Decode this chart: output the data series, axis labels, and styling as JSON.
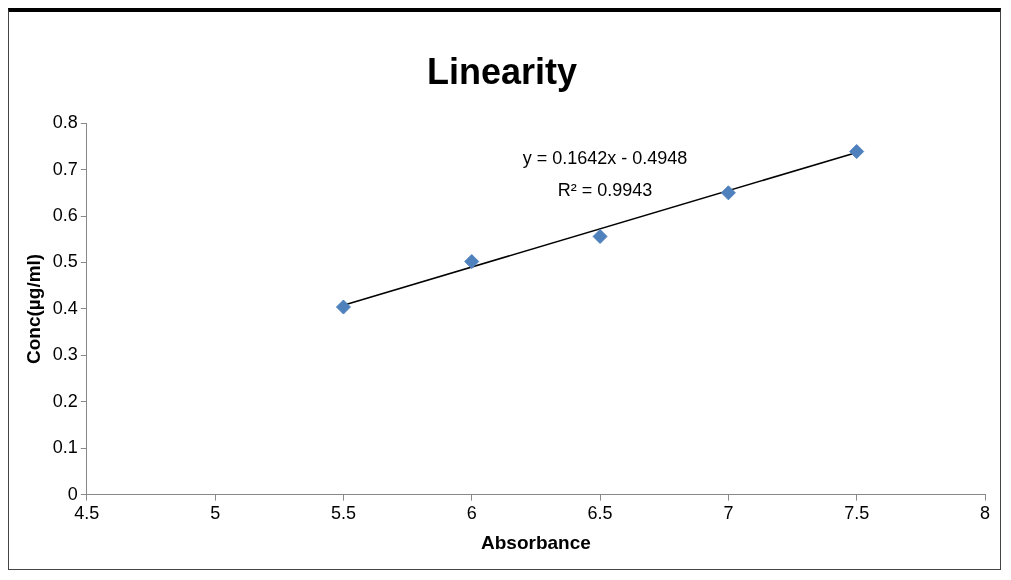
{
  "chart_data": {
    "type": "scatter",
    "title": "Linearity",
    "xlabel": "Absorbance",
    "ylabel": "Conc(µg/ml)",
    "series": [
      {
        "type": "scatter",
        "color": "#4f81bd",
        "marker": "diamond",
        "x": [
          5.5,
          6,
          6.5,
          7,
          7.5
        ],
        "values": [
          0.404,
          0.502,
          0.556,
          0.65,
          0.739
        ]
      },
      {
        "type": "line",
        "color": "#000000",
        "marker": "none",
        "line_style": "solid",
        "x": [
          5.5,
          7.5
        ],
        "values": [
          0.408,
          0.737
        ]
      }
    ],
    "annotations": [
      "y = 0.1642x - 0.4948",
      "R² = 0.9943"
    ],
    "xlim": [
      4.5,
      8
    ],
    "xticks": [
      4.5,
      5,
      5.5,
      6,
      6.5,
      7,
      7.5,
      8
    ],
    "ylim": [
      0,
      0.8
    ],
    "yticks": [
      0,
      0.1,
      0.2,
      0.3,
      0.4,
      0.5,
      0.6,
      0.7,
      0.8
    ],
    "grid": false,
    "legend": false
  }
}
